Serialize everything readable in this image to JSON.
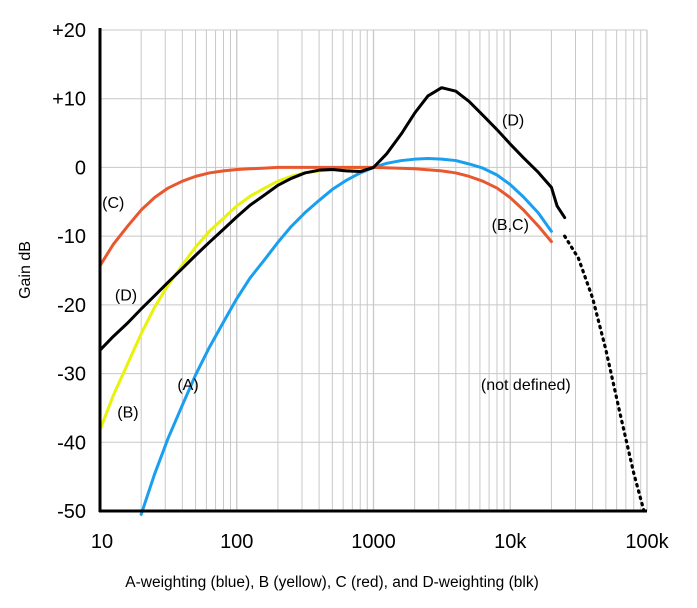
{
  "chart_data": {
    "type": "line",
    "x_scale": "log",
    "xlim": [
      10,
      100000
    ],
    "ylim": [
      -50,
      20
    ],
    "grid": true,
    "ylabel": "Gain dB",
    "xlabel": "A-weighting (blue), B (yellow), C (red), and D-weighting (blk)",
    "x_ticks": [
      {
        "value": 10,
        "label": "10"
      },
      {
        "value": 100,
        "label": "100"
      },
      {
        "value": 1000,
        "label": "1000"
      },
      {
        "value": 10000,
        "label": "10k"
      },
      {
        "value": 100000,
        "label": "100k"
      }
    ],
    "y_ticks": [
      {
        "value": 20,
        "label": "+20"
      },
      {
        "value": 10,
        "label": "+10"
      },
      {
        "value": 0,
        "label": "0"
      },
      {
        "value": -10,
        "label": "-10"
      },
      {
        "value": -20,
        "label": "-20"
      },
      {
        "value": -30,
        "label": "-30"
      },
      {
        "value": -40,
        "label": "-40"
      },
      {
        "value": -50,
        "label": "-50"
      }
    ],
    "series": [
      {
        "key": "A",
        "color": "#1a9ff0",
        "style": "solid",
        "points": [
          [
            20,
            -50.5
          ],
          [
            25,
            -44.7
          ],
          [
            31.5,
            -39.4
          ],
          [
            40,
            -34.6
          ],
          [
            50,
            -30.2
          ],
          [
            63,
            -26.2
          ],
          [
            80,
            -22.5
          ],
          [
            100,
            -19.1
          ],
          [
            125,
            -16.1
          ],
          [
            160,
            -13.4
          ],
          [
            200,
            -10.9
          ],
          [
            250,
            -8.6
          ],
          [
            315,
            -6.6
          ],
          [
            400,
            -4.8
          ],
          [
            500,
            -3.2
          ],
          [
            630,
            -1.9
          ],
          [
            800,
            -0.8
          ],
          [
            1000,
            0
          ],
          [
            1250,
            0.6
          ],
          [
            1600,
            1.0
          ],
          [
            2000,
            1.2
          ],
          [
            2500,
            1.3
          ],
          [
            3150,
            1.2
          ],
          [
            4000,
            1.0
          ],
          [
            5000,
            0.5
          ],
          [
            6300,
            -0.1
          ],
          [
            8000,
            -1.1
          ],
          [
            10000,
            -2.5
          ],
          [
            12500,
            -4.3
          ],
          [
            16000,
            -6.6
          ],
          [
            20000,
            -9.3
          ]
        ]
      },
      {
        "key": "B",
        "color": "#e8f20a",
        "style": "solid",
        "points": [
          [
            10,
            -38.2
          ],
          [
            12.5,
            -33.2
          ],
          [
            16,
            -28.5
          ],
          [
            20,
            -24.2
          ],
          [
            25,
            -20.4
          ],
          [
            31.5,
            -17.1
          ],
          [
            40,
            -14.2
          ],
          [
            50,
            -11.6
          ],
          [
            63,
            -9.3
          ],
          [
            80,
            -7.4
          ],
          [
            100,
            -5.6
          ],
          [
            125,
            -4.2
          ],
          [
            160,
            -3.0
          ],
          [
            200,
            -2.0
          ],
          [
            250,
            -1.3
          ],
          [
            315,
            -0.8
          ],
          [
            400,
            -0.5
          ],
          [
            500,
            -0.3
          ],
          [
            630,
            -0.1
          ],
          [
            800,
            0
          ],
          [
            1000,
            0
          ]
        ]
      },
      {
        "key": "C",
        "color": "#e8582f",
        "style": "solid",
        "points": [
          [
            10,
            -14.3
          ],
          [
            12.5,
            -11.2
          ],
          [
            16,
            -8.5
          ],
          [
            20,
            -6.2
          ],
          [
            25,
            -4.4
          ],
          [
            31.5,
            -3.0
          ],
          [
            40,
            -2.0
          ],
          [
            50,
            -1.3
          ],
          [
            63,
            -0.8
          ],
          [
            80,
            -0.5
          ],
          [
            100,
            -0.3
          ],
          [
            125,
            -0.2
          ],
          [
            160,
            -0.1
          ],
          [
            200,
            0
          ],
          [
            1000,
            0
          ],
          [
            2000,
            -0.2
          ],
          [
            3150,
            -0.5
          ],
          [
            4000,
            -0.8
          ],
          [
            5000,
            -1.3
          ],
          [
            6300,
            -2.0
          ],
          [
            8000,
            -3.0
          ],
          [
            10000,
            -4.4
          ],
          [
            12500,
            -6.2
          ],
          [
            16000,
            -8.5
          ],
          [
            20000,
            -10.8
          ]
        ]
      },
      {
        "key": "D",
        "color": "#000000",
        "style": "solid",
        "points": [
          [
            10,
            -26.6
          ],
          [
            12.5,
            -24.6
          ],
          [
            16,
            -22.6
          ],
          [
            20,
            -20.6
          ],
          [
            25,
            -18.7
          ],
          [
            31.5,
            -16.7
          ],
          [
            40,
            -14.7
          ],
          [
            50,
            -12.8
          ],
          [
            63,
            -10.9
          ],
          [
            80,
            -9.0
          ],
          [
            100,
            -7.2
          ],
          [
            125,
            -5.5
          ],
          [
            160,
            -4.0
          ],
          [
            200,
            -2.6
          ],
          [
            250,
            -1.6
          ],
          [
            315,
            -0.8
          ],
          [
            400,
            -0.4
          ],
          [
            500,
            -0.3
          ],
          [
            630,
            -0.5
          ],
          [
            800,
            -0.6
          ],
          [
            1000,
            0
          ],
          [
            1250,
            2.0
          ],
          [
            1600,
            4.9
          ],
          [
            2000,
            7.9
          ],
          [
            2500,
            10.4
          ],
          [
            3150,
            11.6
          ],
          [
            4000,
            11.1
          ],
          [
            5000,
            9.6
          ],
          [
            6300,
            7.6
          ],
          [
            8000,
            5.5
          ],
          [
            10000,
            3.4
          ],
          [
            12500,
            1.4
          ],
          [
            16000,
            -0.7
          ],
          [
            20000,
            -2.9
          ],
          [
            22000,
            -5.6
          ],
          [
            25000,
            -7.3
          ]
        ]
      },
      {
        "key": "D-undefined",
        "color": "#000000",
        "style": "dotted",
        "points": [
          [
            25000,
            -10.0
          ],
          [
            31500,
            -13.2
          ],
          [
            40000,
            -19.0
          ],
          [
            50000,
            -26.5
          ],
          [
            63000,
            -35.5
          ],
          [
            80000,
            -44.5
          ],
          [
            95000,
            -50.0
          ]
        ]
      }
    ],
    "annotations": [
      {
        "id": "c",
        "text": "(C)",
        "x": 12.5,
        "y": -5.0
      },
      {
        "id": "d-left",
        "text": "(D)",
        "x": 15.5,
        "y": -18.5
      },
      {
        "id": "a",
        "text": "(A)",
        "x": 44,
        "y": -31.5
      },
      {
        "id": "b",
        "text": "(B)",
        "x": 16,
        "y": -35.5
      },
      {
        "id": "d-right",
        "text": "(D)",
        "x": 10500,
        "y": 7.0
      },
      {
        "id": "bc",
        "text": "(B,C)",
        "x": 10000,
        "y": -8.2
      },
      {
        "id": "not-defined",
        "text": "(not defined)",
        "x": 13000,
        "y": -31.5
      }
    ]
  }
}
